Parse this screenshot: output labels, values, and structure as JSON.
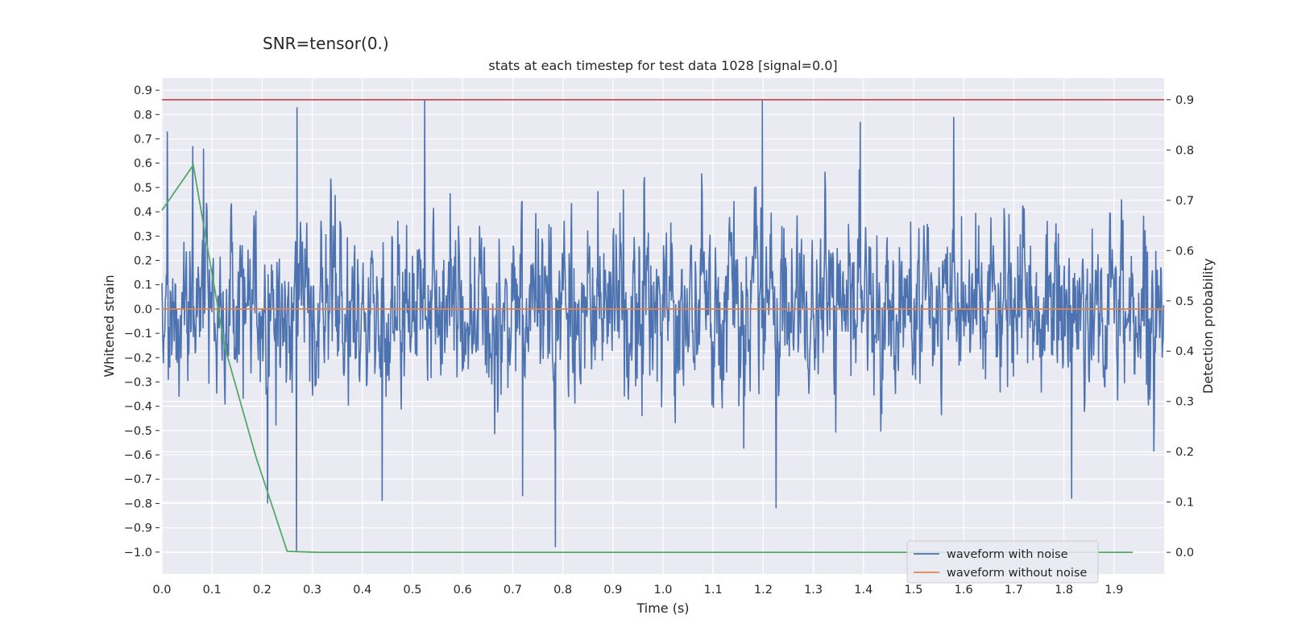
{
  "figure": {
    "suptitle": "SNR=tensor(0.)"
  },
  "chart_data": {
    "type": "line",
    "title": "stats at each timestep for test data 1028 [signal=0.0]",
    "xlabel": "Time (s)",
    "ylabel": "Whitened strain",
    "ylabel_right": "Detection probability",
    "xlim": [
      0.0,
      2.0
    ],
    "ylim": [
      -1.09,
      0.95
    ],
    "ylim_right": [
      -0.043,
      0.943
    ],
    "x_ticks": [
      "0.0",
      "0.1",
      "0.2",
      "0.3",
      "0.4",
      "0.5",
      "0.6",
      "0.7",
      "0.8",
      "0.9",
      "1.0",
      "1.1",
      "1.2",
      "1.3",
      "1.4",
      "1.5",
      "1.6",
      "1.7",
      "1.8",
      "1.9"
    ],
    "y_ticks": [
      "0.9",
      "0.8",
      "0.7",
      "0.6",
      "0.5",
      "0.4",
      "0.3",
      "0.2",
      "0.1",
      "0.0",
      "−0.1",
      "−0.2",
      "−0.3",
      "−0.4",
      "−0.5",
      "−0.6",
      "−0.7",
      "−0.8",
      "−0.9",
      "−1.0"
    ],
    "y_ticks_right": [
      "0.9",
      "0.8",
      "0.7",
      "0.6",
      "0.5",
      "0.4",
      "0.3",
      "0.2",
      "0.1",
      "0.0"
    ],
    "grid": true,
    "legend_position": "lower-right",
    "colors": {
      "background": "#eaeaf2",
      "grid": "#ffffff",
      "noise": "#4c72b0",
      "clean": "#dd8452",
      "probability": "#55a868",
      "threshold": "#c44e52"
    },
    "series": [
      {
        "name": "waveform with noise",
        "axis": "left",
        "description_samples": 2048,
        "sample_rate_hz": 1024,
        "value_range": [
          -1.0,
          0.86
        ],
        "std_estimate": 0.28
      },
      {
        "name": "waveform without noise",
        "axis": "left",
        "x": [
          0.0,
          2.0
        ],
        "y": [
          0.0,
          0.0
        ]
      },
      {
        "axis": "right",
        "x": [
          0.0,
          0.0625,
          0.125,
          0.1875,
          0.25,
          0.3125,
          0.375,
          0.4375,
          0.5,
          0.5625,
          0.625,
          0.6875,
          0.75,
          0.8125,
          0.875,
          0.9375,
          1.0,
          1.0625,
          1.125,
          1.1875,
          1.25,
          1.3125,
          1.375,
          1.4375,
          1.5,
          1.5625,
          1.625,
          1.6875,
          1.75,
          1.8125,
          1.875,
          1.9375
        ],
        "y": [
          0.68,
          0.77,
          0.41,
          0.19,
          0.002,
          0.0,
          0.0,
          0.0,
          0.0,
          0.0,
          0.0,
          0.0,
          0.0,
          0.0,
          0.0,
          0.0,
          0.0,
          0.0,
          0.0,
          0.0,
          0.0,
          0.0,
          0.0,
          0.0,
          0.0,
          0.0,
          0.0,
          0.0,
          0.0,
          0.0,
          0.0,
          0.0
        ]
      },
      {
        "axis": "right",
        "x": [
          0.0,
          2.0
        ],
        "y": [
          0.9,
          0.9
        ]
      }
    ],
    "noise_peaks": [
      {
        "x": 0.011,
        "y": 0.73
      },
      {
        "x": 0.062,
        "y": 0.67
      },
      {
        "x": 0.083,
        "y": 0.66
      },
      {
        "x": 0.27,
        "y": 0.83
      },
      {
        "x": 0.269,
        "y": -1.0
      },
      {
        "x": 0.524,
        "y": 0.86
      },
      {
        "x": 0.785,
        "y": -0.98
      },
      {
        "x": 1.198,
        "y": 0.86
      },
      {
        "x": 1.226,
        "y": -0.82
      },
      {
        "x": 0.211,
        "y": -0.8
      },
      {
        "x": 0.439,
        "y": -0.79
      },
      {
        "x": 0.72,
        "y": -0.77
      },
      {
        "x": 1.815,
        "y": -0.78
      },
      {
        "x": 1.394,
        "y": 0.77
      },
      {
        "x": 1.58,
        "y": 0.79
      }
    ]
  }
}
